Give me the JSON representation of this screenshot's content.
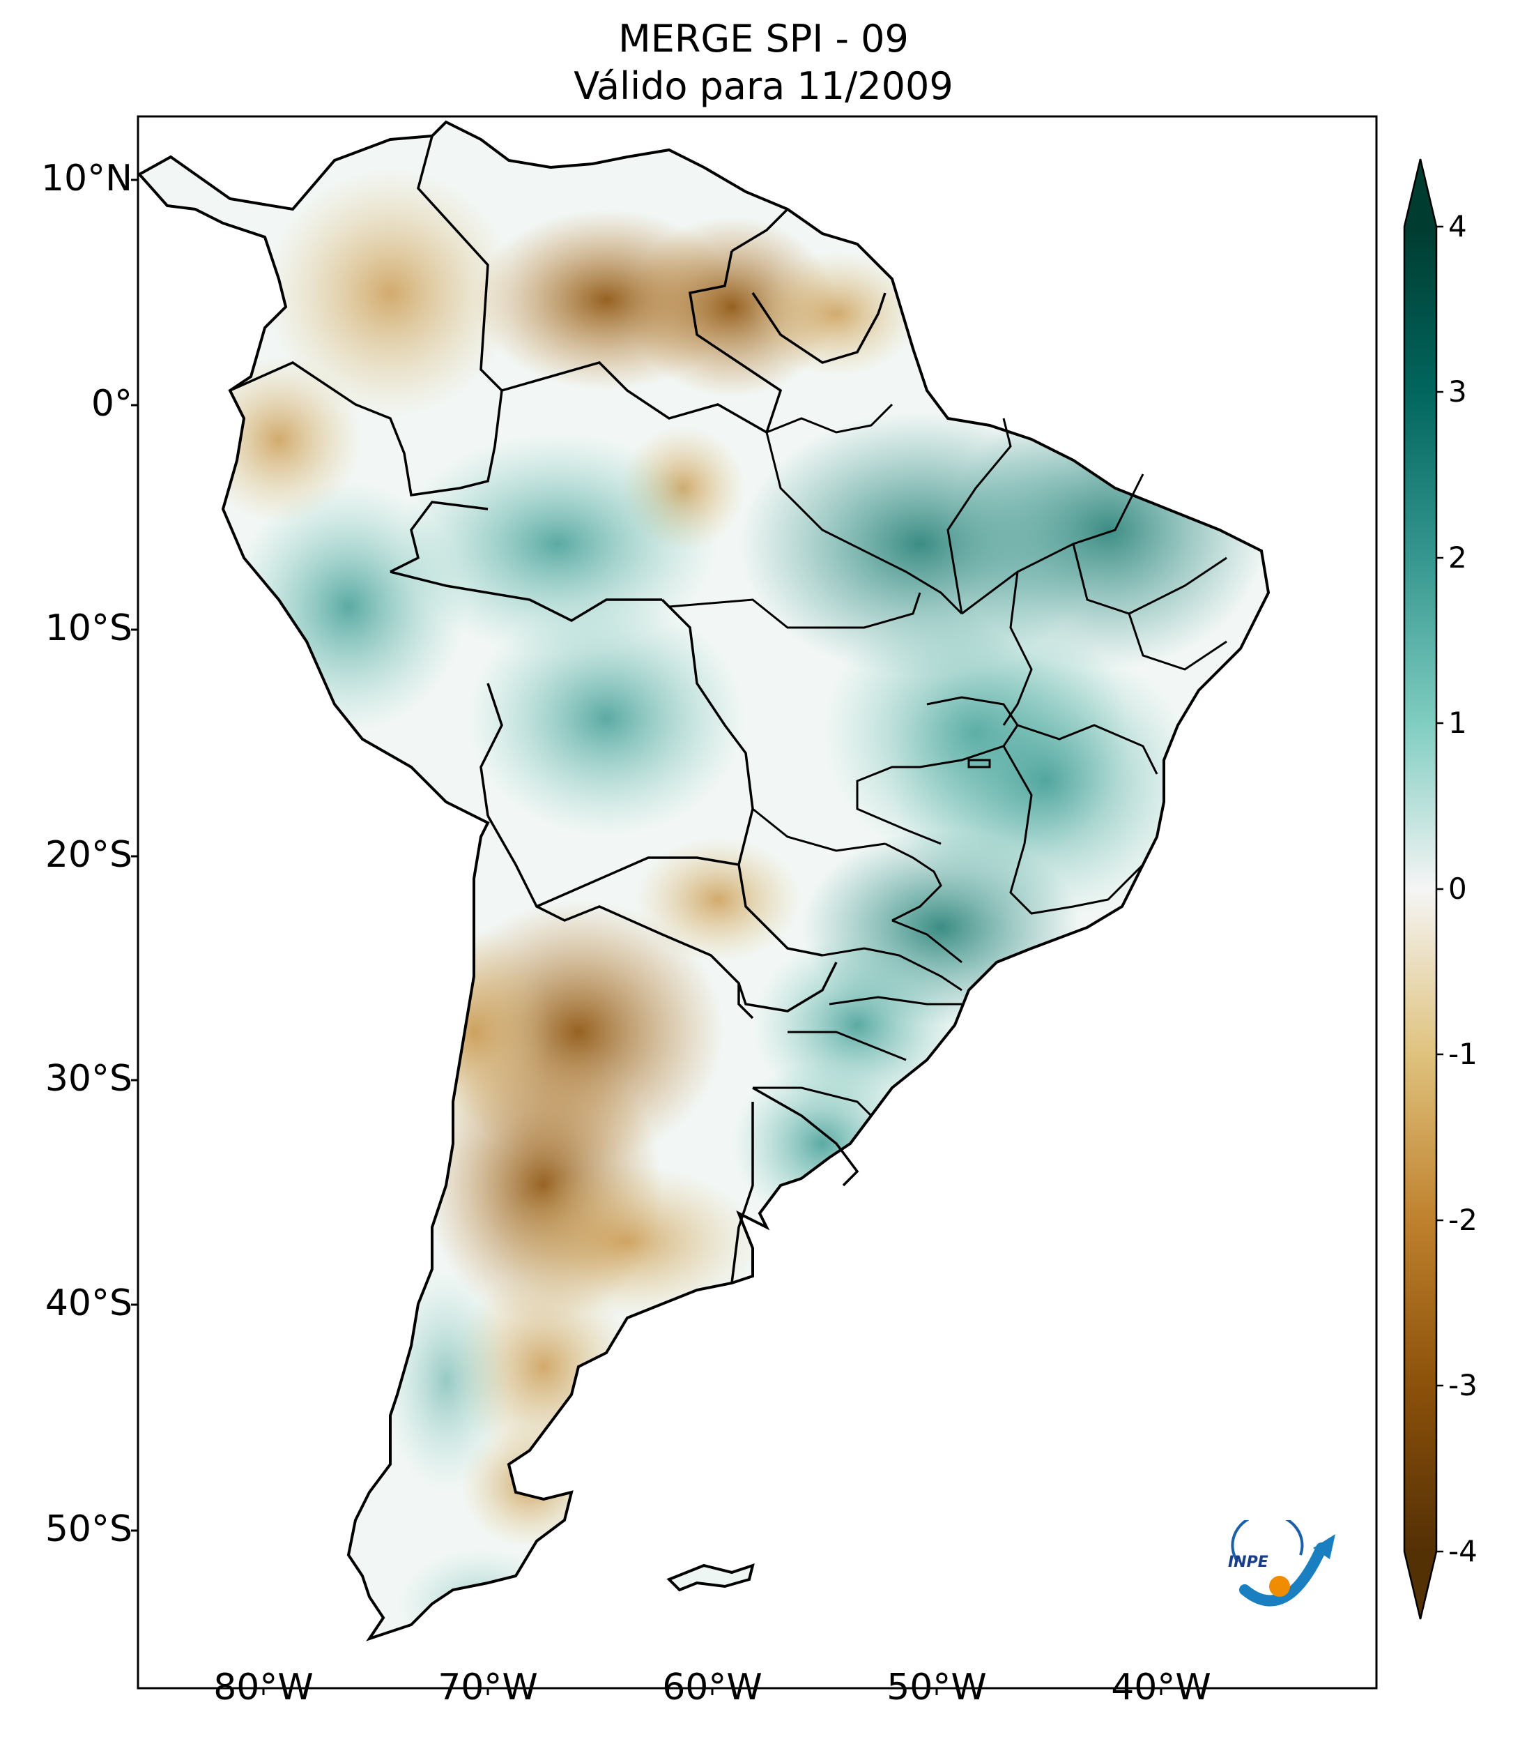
{
  "title": {
    "line1": "MERGE   SPI - 09",
    "line2": "Válido para 11/2009"
  },
  "map": {
    "lon_range": [
      -85,
      -30
    ],
    "lat_range": [
      -56,
      13
    ],
    "lat_ticks": [
      "10°N",
      "0°",
      "10°S",
      "20°S",
      "30°S",
      "40°S",
      "50°S"
    ],
    "lon_ticks": [
      "80°W",
      "70°W",
      "60°W",
      "50°W",
      "40°W"
    ],
    "colorbar": {
      "ticks": [
        "4",
        "3",
        "2",
        "1",
        "0",
        "-1",
        "-2",
        "-3",
        "-4"
      ],
      "range": [
        -4,
        4
      ],
      "extend": "both",
      "colors": {
        "max": "#003c30",
        "high": "#35978f",
        "mid_high": "#80cdc1",
        "neutral": "#f5f5f5",
        "mid_low": "#dfc27d",
        "low": "#bf812d",
        "min": "#543005"
      }
    },
    "logo_text": "INPE"
  }
}
